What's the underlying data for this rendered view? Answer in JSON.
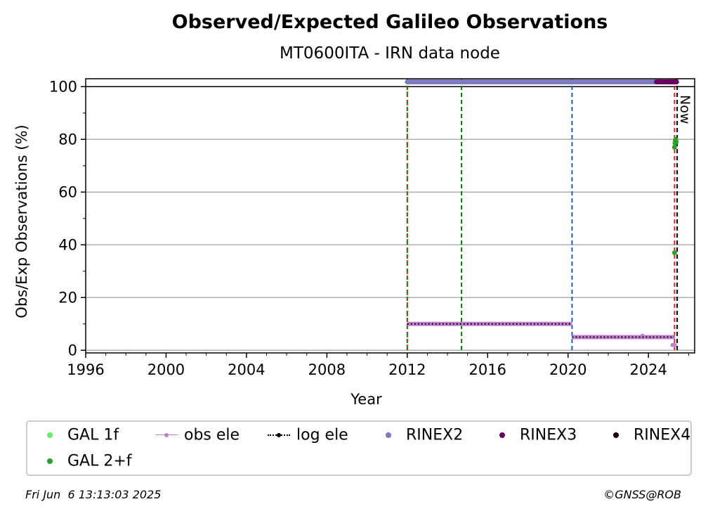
{
  "chart_data": {
    "type": "line",
    "title": "Observed/Expected Galileo Observations",
    "subtitle": "MT0600ITA - IRN data node",
    "xlabel": "Year",
    "ylabel": "Obs/Exp Observations (%)",
    "xlim": [
      1996,
      2026.3
    ],
    "ylim": [
      -1,
      103
    ],
    "x_ticks": [
      1996,
      2000,
      2004,
      2008,
      2012,
      2016,
      2020,
      2024
    ],
    "y_ticks": [
      0,
      20,
      40,
      60,
      80,
      100
    ],
    "grid": "y",
    "reference_line_y": 100,
    "now_label": "Now",
    "now_x": 2025.43,
    "vlines": [
      {
        "x": 2012.0,
        "color": "#008000",
        "style": "dashed"
      },
      {
        "x": 2012.0,
        "color": "#d62728",
        "style": "dotted"
      },
      {
        "x": 2014.7,
        "color": "#008000",
        "style": "dashed"
      },
      {
        "x": 2020.2,
        "color": "#1f5fbf",
        "style": "dashed"
      },
      {
        "x": 2025.3,
        "color": "#d62728",
        "style": "dashed"
      },
      {
        "x": 2025.43,
        "color": "#000000",
        "style": "dashed"
      }
    ],
    "series": [
      {
        "name": "GAL 1f",
        "kind": "points",
        "color": "#66ee66",
        "x": [],
        "y": []
      },
      {
        "name": "obs ele",
        "kind": "line",
        "color": "#c27fd0",
        "segments": [
          {
            "x": [
              2012.0,
              2020.2
            ],
            "y": [
              10,
              10
            ]
          },
          {
            "x": [
              2020.2,
              2025.3
            ],
            "y": [
              5,
              5
            ]
          }
        ],
        "points": {
          "x": [
            2023.7,
            2025.2,
            2025.3
          ],
          "y": [
            5.5,
            2,
            2
          ]
        }
      },
      {
        "name": "log ele",
        "kind": "line",
        "color": "#000000",
        "segments": [
          {
            "x": [
              2012.0,
              2020.2
            ],
            "y": [
              10,
              10
            ]
          },
          {
            "x": [
              2020.2,
              2025.3
            ],
            "y": [
              5,
              5
            ]
          }
        ]
      },
      {
        "name": "RINEX2",
        "kind": "band",
        "color": "#7b7bc0",
        "x": [
          2012.0,
          2024.4
        ],
        "y": 101.8
      },
      {
        "name": "RINEX3",
        "kind": "band",
        "color": "#6a0060",
        "x": [
          2024.4,
          2025.4
        ],
        "y": 101.8
      },
      {
        "name": "RINEX4",
        "kind": "points",
        "color": "#1a0010",
        "x": [],
        "y": []
      },
      {
        "name": "GAL 2+f",
        "kind": "points",
        "color": "#2ca02c",
        "x": [
          2025.3,
          2025.32,
          2025.34,
          2025.36,
          2025.38,
          2025.3
        ],
        "y": [
          77,
          78.5,
          79.5,
          80,
          79,
          37
        ]
      }
    ]
  },
  "legend": [
    {
      "label": "GAL 1f",
      "marker": "dot",
      "color": "#66ee66"
    },
    {
      "label": "obs ele",
      "marker": "line-dot",
      "color": "#c27fd0"
    },
    {
      "label": "log ele",
      "marker": "dotted-dot",
      "color": "#000000"
    },
    {
      "label": "RINEX2",
      "marker": "dot",
      "color": "#7b7bc0"
    },
    {
      "label": "RINEX3",
      "marker": "dot",
      "color": "#6a0060"
    },
    {
      "label": "RINEX4",
      "marker": "dot",
      "color": "#1a0010"
    },
    {
      "label": "GAL 2+f",
      "marker": "dot",
      "color": "#2ca02c"
    }
  ],
  "footer": {
    "timestamp": "Fri Jun  6 13:13:03 2025",
    "credit": "©GNSS@ROB"
  }
}
